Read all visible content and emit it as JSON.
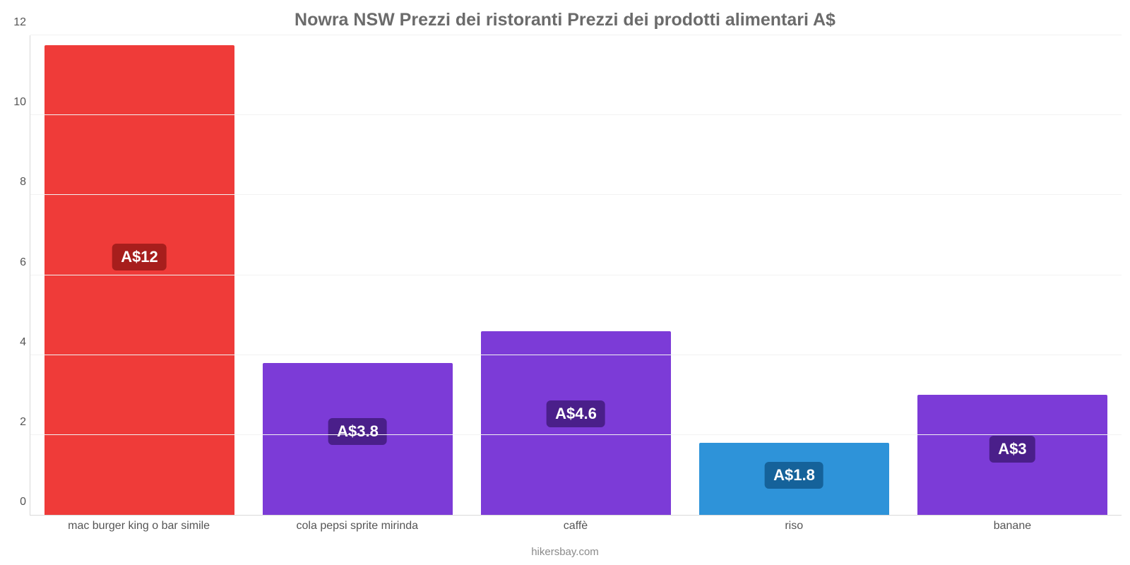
{
  "chart": {
    "type": "bar",
    "title": "Nowra NSW Prezzi dei ristoranti Prezzi dei prodotti alimentari A$",
    "title_color": "#6b6b6b",
    "title_fontsize": 25,
    "background_color": "#ffffff",
    "grid_color": "#f2f2f2",
    "axis_color": "#d9d9d9",
    "ylim": [
      0,
      12
    ],
    "yticks": [
      0,
      2,
      4,
      6,
      8,
      10,
      12
    ],
    "bar_width_pct": 87,
    "label_fontsize": 16,
    "value_label_fontsize": 22,
    "categories": [
      "mac burger king o bar simile",
      "cola pepsi sprite mirinda",
      "caffè",
      "riso",
      "banane"
    ],
    "values": [
      11.75,
      3.8,
      4.6,
      1.8,
      3.0
    ],
    "value_labels": [
      "A$12",
      "A$3.8",
      "A$4.6",
      "A$1.8",
      "A$3"
    ],
    "bar_colors": [
      "#ef3b39",
      "#7c3bd7",
      "#7c3bd7",
      "#2e93d9",
      "#7c3bd7"
    ],
    "badge_colors": [
      "#a71e1c",
      "#4a1f8a",
      "#4a1f8a",
      "#15629a",
      "#4a1f8a"
    ],
    "attribution": "hikersbay.com",
    "attribution_color": "#8a8a8a"
  }
}
